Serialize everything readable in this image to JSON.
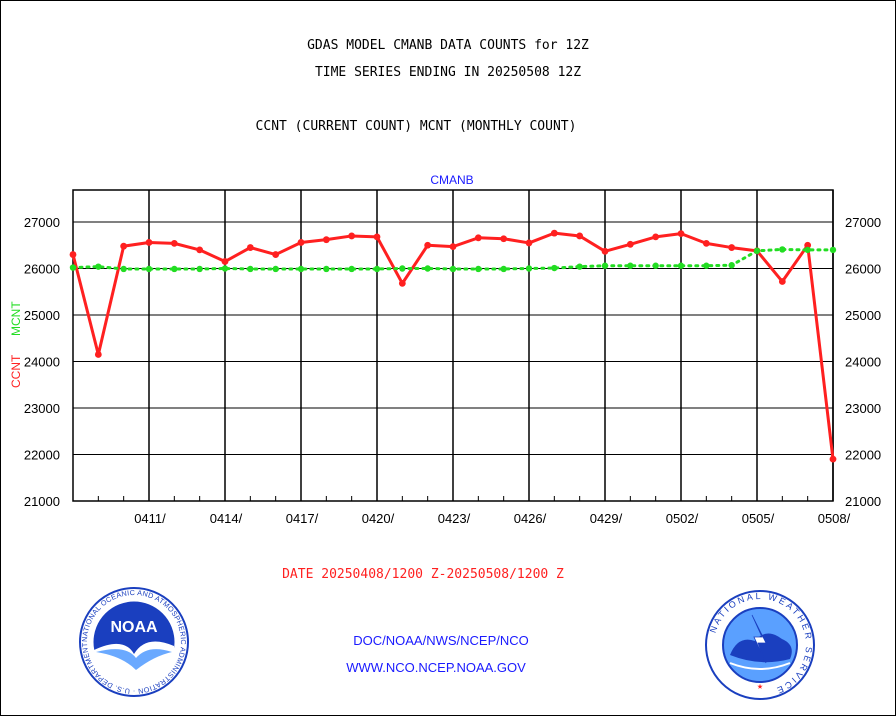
{
  "titles": {
    "line1": "GDAS MODEL CMANB DATA COUNTS for 12Z",
    "line2": "TIME SERIES ENDING IN 20250508 12Z",
    "line3": "CCNT (CURRENT COUNT) MCNT (MONTHLY COUNT)"
  },
  "date_range": "DATE 20250408/1200 Z-20250508/1200 Z",
  "footer": {
    "org_path": "DOC/NOAA/NWS/NCEP/NCO",
    "website": "WWW.NCO.NCEP.NOAA.GOV"
  },
  "logos": {
    "noaa_word": "NOAA",
    "noaa_ring_text": "NATIONAL OCEANIC AND ATMOSPHERIC ADMINISTRATION · U.S. DEPARTMENT OF COMMERCE",
    "nws_ring_text": "NATIONAL WEATHER SERVICE"
  },
  "colors": {
    "ccnt": "#ff2020",
    "mcnt": "#22dd22",
    "station": "#1a1aff",
    "date_text": "#ff2020"
  },
  "chart_data": {
    "type": "line",
    "station_label": "CMANB",
    "ylabel_left_parts": [
      "CCNT",
      "MCNT"
    ],
    "ylim": [
      21000,
      27000
    ],
    "y_ticks": [
      21000,
      22000,
      23000,
      24000,
      25000,
      26000,
      27000
    ],
    "x_tick_labels": [
      "0411/",
      "0414/",
      "0417/",
      "0420/",
      "0423/",
      "0426/",
      "0429/",
      "0502/",
      "0505/",
      "0508/"
    ],
    "grid": true,
    "series": [
      {
        "name": "CCNT",
        "color": "#ff2020",
        "x": [
          "20250408",
          "20250409",
          "20250410",
          "20250411",
          "20250412",
          "20250413",
          "20250414",
          "20250415",
          "20250416",
          "20250417",
          "20250418",
          "20250419",
          "20250420",
          "20250421",
          "20250422",
          "20250423",
          "20250424",
          "20250425",
          "20250426",
          "20250427",
          "20250428",
          "20250429",
          "20250430",
          "20250501",
          "20250502",
          "20250503",
          "20250504",
          "20250505",
          "20250506",
          "20250507",
          "20250508"
        ],
        "values": [
          26300,
          24150,
          26480,
          26560,
          26540,
          26400,
          26150,
          26450,
          26300,
          26560,
          26620,
          26700,
          26680,
          25680,
          26500,
          26470,
          26660,
          26640,
          26550,
          26760,
          26700,
          26370,
          26520,
          26680,
          26750,
          26540,
          26450,
          26380,
          25720,
          26500,
          21900
        ]
      },
      {
        "name": "MCNT",
        "color": "#22dd22",
        "x": [
          "20250408",
          "20250409",
          "20250410",
          "20250411",
          "20250412",
          "20250413",
          "20250414",
          "20250415",
          "20250416",
          "20250417",
          "20250418",
          "20250419",
          "20250420",
          "20250421",
          "20250422",
          "20250423",
          "20250424",
          "20250425",
          "20250426",
          "20250427",
          "20250428",
          "20250429",
          "20250430",
          "20250501",
          "20250502",
          "20250503",
          "20250504",
          "20250505",
          "20250506",
          "20250507",
          "20250508"
        ],
        "values": [
          26020,
          26040,
          25990,
          25990,
          25990,
          25990,
          26000,
          25990,
          25990,
          25990,
          25990,
          25990,
          25990,
          26000,
          26000,
          25990,
          25990,
          25990,
          26000,
          26010,
          26040,
          26060,
          26060,
          26060,
          26060,
          26060,
          26070,
          26380,
          26410,
          26400,
          26400
        ]
      }
    ]
  }
}
